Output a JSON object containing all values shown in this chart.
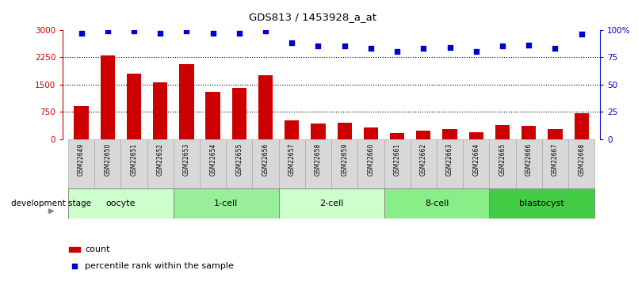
{
  "title": "GDS813 / 1453928_a_at",
  "samples": [
    "GSM22649",
    "GSM22650",
    "GSM22651",
    "GSM22652",
    "GSM22653",
    "GSM22654",
    "GSM22655",
    "GSM22656",
    "GSM22657",
    "GSM22658",
    "GSM22659",
    "GSM22660",
    "GSM22661",
    "GSM22662",
    "GSM22663",
    "GSM22664",
    "GSM22665",
    "GSM22666",
    "GSM22667",
    "GSM22668"
  ],
  "counts": [
    900,
    2300,
    1800,
    1550,
    2050,
    1300,
    1400,
    1750,
    520,
    430,
    440,
    310,
    170,
    230,
    270,
    180,
    380,
    370,
    280,
    700
  ],
  "percentiles": [
    97,
    99,
    99,
    97,
    99,
    97,
    97,
    99,
    88,
    85,
    85,
    83,
    80,
    83,
    84,
    80,
    85,
    86,
    83,
    96
  ],
  "stages": [
    {
      "label": "oocyte",
      "start": 0,
      "end": 4,
      "color": "#ccffcc"
    },
    {
      "label": "1-cell",
      "start": 4,
      "end": 8,
      "color": "#99ee99"
    },
    {
      "label": "2-cell",
      "start": 8,
      "end": 12,
      "color": "#ccffcc"
    },
    {
      "label": "8-cell",
      "start": 12,
      "end": 16,
      "color": "#88ee88"
    },
    {
      "label": "blastocyst",
      "start": 16,
      "end": 20,
      "color": "#44cc44"
    }
  ],
  "bar_color": "#cc0000",
  "dot_color": "#0000cc",
  "ylim_left": [
    0,
    3000
  ],
  "ylim_right": [
    0,
    100
  ],
  "yticks_left": [
    0,
    750,
    1500,
    2250,
    3000
  ],
  "ytick_labels_left": [
    "0",
    "750",
    "1500",
    "2250",
    "3000"
  ],
  "yticks_right": [
    0,
    25,
    50,
    75,
    100
  ],
  "ytick_labels_right": [
    "0",
    "25",
    "50",
    "75",
    "100%"
  ],
  "bg_color": "#ffffff",
  "legend_count_label": "count",
  "legend_pct_label": "percentile rank within the sample",
  "dev_stage_label": "development stage"
}
